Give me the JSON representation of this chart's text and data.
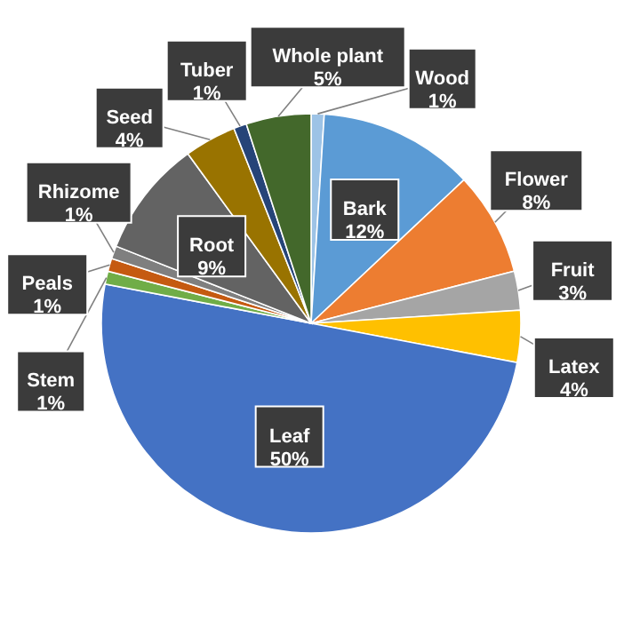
{
  "chart_data": {
    "type": "pie",
    "categories": [
      "Wood",
      "Bark",
      "Flower",
      "Fruit",
      "Latex",
      "Leaf",
      "Stem",
      "Peals",
      "Rhizome",
      "Root",
      "Seed",
      "Tuber",
      "Whole plant"
    ],
    "values": [
      1,
      12,
      8,
      3,
      4,
      50,
      1,
      1,
      1,
      9,
      4,
      1,
      5
    ],
    "value_labels": [
      "1%",
      "12%",
      "8%",
      "3%",
      "4%",
      "50%",
      "1%",
      "1%",
      "1%",
      "9%",
      "4%",
      "1%",
      "5%"
    ],
    "colors": [
      "#9dc3e6",
      "#5b9bd5",
      "#ed7d31",
      "#a5a5a5",
      "#ffc000",
      "#4472c4",
      "#70ad47",
      "#c55a11",
      "#7f7f7f",
      "#636363",
      "#997300",
      "#264478",
      "#43682b"
    ]
  }
}
